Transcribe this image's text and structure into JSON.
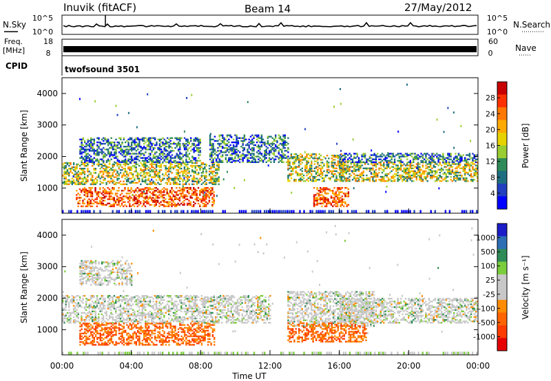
{
  "header": {
    "station": "Inuvik (fitACF)",
    "beam": "Beam 14",
    "date": "27/May/2012"
  },
  "strip_labels": {
    "nsky": "N.Sky",
    "nsearch": "N.Search",
    "freq_line1": "Freq.",
    "freq_line2": "[MHz]",
    "nave": "Nave",
    "cpid": "CPID",
    "cpid_value": "twofsound 3501",
    "noise_ticks_left": [
      "10^5",
      "10^0"
    ],
    "noise_ticks_right": [
      "10^5",
      "10^0"
    ],
    "freq_ticks": [
      "18",
      "8"
    ],
    "nave_ticks": [
      "60",
      "0"
    ]
  },
  "x_axis": {
    "label": "Time UT",
    "ticks": [
      "00:00",
      "04:00",
      "08:00",
      "12:00",
      "16:00",
      "20:00",
      "00:00"
    ]
  },
  "chart_data": [
    {
      "type": "heatmap",
      "panel": "power",
      "ylabel": "Slant Range [km]",
      "xlabel": "Time UT",
      "xlim_hours": [
        0,
        24
      ],
      "ylim_km": [
        200,
        4500
      ],
      "y_ticks": [
        "4000",
        "3000",
        "2000",
        "1000"
      ],
      "colorbar": {
        "label": "Power [dB]",
        "labels": [
          "28",
          "24",
          "20",
          "16",
          "12",
          "8",
          "4"
        ],
        "colors": [
          "#c80000",
          "#ff3200",
          "#ff7800",
          "#ffaa00",
          "#e6d200",
          "#9acd32",
          "#2e8b57",
          "#1e6e82",
          "#2040c0",
          "#0000ff"
        ]
      },
      "regions": [
        {
          "t": [
            0.0,
            9.0
          ],
          "r": [
            1100,
            1800
          ],
          "level": "mid"
        },
        {
          "t": [
            0.8,
            8.8
          ],
          "r": [
            400,
            1000
          ],
          "level": "high"
        },
        {
          "t": [
            1.0,
            8.0
          ],
          "r": [
            1800,
            2600
          ],
          "level": "low"
        },
        {
          "t": [
            8.5,
            13.0
          ],
          "r": [
            1800,
            2700
          ],
          "level": "low"
        },
        {
          "t": [
            13.0,
            16.5
          ],
          "r": [
            1200,
            2100
          ],
          "level": "mid"
        },
        {
          "t": [
            14.5,
            16.5
          ],
          "r": [
            400,
            1000
          ],
          "level": "high"
        },
        {
          "t": [
            16.0,
            24.0
          ],
          "r": [
            1200,
            1800
          ],
          "level": "mid"
        },
        {
          "t": [
            16.0,
            24.0
          ],
          "r": [
            1800,
            2100
          ],
          "level": "low"
        }
      ]
    },
    {
      "type": "heatmap",
      "panel": "velocity",
      "ylabel": "Slant Range [km]",
      "xlabel": "Time UT",
      "xlim_hours": [
        0,
        24
      ],
      "ylim_km": [
        200,
        4500
      ],
      "y_ticks": [
        "4000",
        "3000",
        "2000",
        "1000"
      ],
      "colorbar": {
        "label": "Velocity [m s⁻¹]",
        "labels": [
          "1000",
          "500",
          "100",
          "25",
          "-25",
          "-100",
          "-500",
          "-1000"
        ],
        "colors": [
          "#1c1cc8",
          "#2e6eb4",
          "#2e8b57",
          "#7ccd3c",
          "#c8c8c8",
          "#c8c8c8",
          "#ff8c00",
          "#ff6400",
          "#ff3c00",
          "#e60000"
        ]
      },
      "regions": [
        {
          "t": [
            0.0,
            12.0
          ],
          "r": [
            1200,
            2100
          ],
          "level": "ground"
        },
        {
          "t": [
            1.0,
            8.8
          ],
          "r": [
            500,
            1200
          ],
          "level": "away"
        },
        {
          "t": [
            1.0,
            4.0
          ],
          "r": [
            2400,
            3200
          ],
          "level": "ground"
        },
        {
          "t": [
            13.0,
            18.0
          ],
          "r": [
            1100,
            2200
          ],
          "level": "ground"
        },
        {
          "t": [
            13.0,
            17.5
          ],
          "r": [
            600,
            1200
          ],
          "level": "away"
        },
        {
          "t": [
            16.0,
            24.0
          ],
          "r": [
            1200,
            2000
          ],
          "level": "ground"
        }
      ]
    }
  ]
}
